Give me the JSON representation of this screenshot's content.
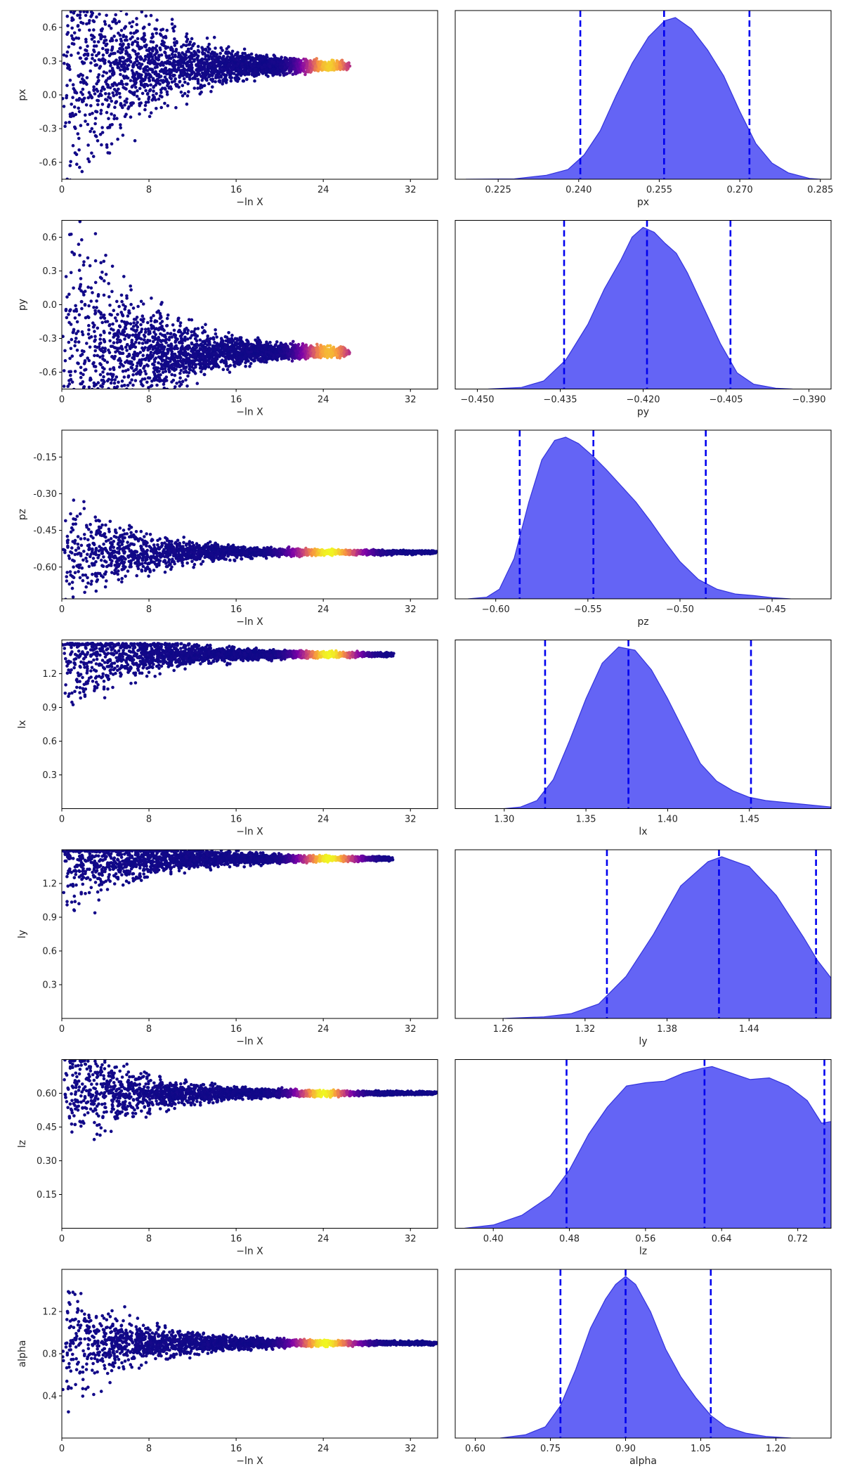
{
  "colors": {
    "scatter_low": "#0d0887",
    "scatter_mid1": "#7e03a8",
    "scatter_mid2": "#cc4778",
    "scatter_mid3": "#f89540",
    "scatter_high": "#f0f921",
    "density_fill": "#6464f5",
    "density_edge": "#3333dd",
    "quantile_line": "#0000ee",
    "axis": "#000000"
  },
  "chart_data": [
    {
      "param": "px",
      "type": "scatter",
      "xlabel": "−ln X",
      "ylabel": "px",
      "xlim": [
        0,
        34.5
      ],
      "xticks": [
        "0",
        "8",
        "16",
        "24",
        "32"
      ],
      "ylim": [
        -0.75,
        0.75
      ],
      "yticks": [
        "-0.6",
        "-0.3",
        "0.0",
        "0.3",
        "0.6"
      ],
      "converge_y": 0.26,
      "spread_start": 1.6,
      "converge_x": 26,
      "heat_center": 24.5,
      "heat_width": 2.2,
      "heat_strength": 0.9
    },
    {
      "param": "px",
      "type": "area",
      "xlabel": "px",
      "xlim": [
        0.217,
        0.287
      ],
      "xticks": [
        "0.225",
        "0.240",
        "0.255",
        "0.270",
        "0.285"
      ],
      "quantiles": [
        0.2403,
        0.2559,
        0.2718
      ],
      "density": [
        [
          0.219,
          0
        ],
        [
          0.228,
          0.002
        ],
        [
          0.234,
          0.025
        ],
        [
          0.238,
          0.06
        ],
        [
          0.241,
          0.15
        ],
        [
          0.244,
          0.3
        ],
        [
          0.247,
          0.52
        ],
        [
          0.25,
          0.72
        ],
        [
          0.253,
          0.88
        ],
        [
          0.256,
          0.98
        ],
        [
          0.258,
          1.0
        ],
        [
          0.261,
          0.93
        ],
        [
          0.264,
          0.8
        ],
        [
          0.267,
          0.64
        ],
        [
          0.27,
          0.42
        ],
        [
          0.273,
          0.22
        ],
        [
          0.276,
          0.1
        ],
        [
          0.279,
          0.04
        ],
        [
          0.283,
          0.005
        ],
        [
          0.285,
          0
        ]
      ]
    },
    {
      "param": "py",
      "type": "scatter",
      "xlabel": "−ln X",
      "ylabel": "py",
      "xlim": [
        0,
        34.5
      ],
      "xticks": [
        "0",
        "8",
        "16",
        "24",
        "32"
      ],
      "ylim": [
        -0.75,
        0.75
      ],
      "yticks": [
        "-0.6",
        "-0.3",
        "0.0",
        "0.3",
        "0.6"
      ],
      "converge_y": -0.42,
      "spread_start": 1.6,
      "converge_x": 26,
      "heat_center": 24.5,
      "heat_width": 2.2,
      "heat_strength": 0.85
    },
    {
      "param": "py",
      "type": "area",
      "xlabel": "py",
      "xlim": [
        -0.454,
        -0.386
      ],
      "xticks": [
        "−0.450",
        "−0.435",
        "−0.420",
        "−0.405",
        "−0.390"
      ],
      "quantiles": [
        -0.4343,
        -0.4193,
        -0.4042
      ],
      "density": [
        [
          -0.448,
          0
        ],
        [
          -0.442,
          0.01
        ],
        [
          -0.438,
          0.05
        ],
        [
          -0.434,
          0.18
        ],
        [
          -0.43,
          0.4
        ],
        [
          -0.427,
          0.62
        ],
        [
          -0.424,
          0.8
        ],
        [
          -0.422,
          0.94
        ],
        [
          -0.42,
          1.0
        ],
        [
          -0.418,
          0.97
        ],
        [
          -0.416,
          0.9
        ],
        [
          -0.414,
          0.84
        ],
        [
          -0.412,
          0.72
        ],
        [
          -0.409,
          0.5
        ],
        [
          -0.406,
          0.28
        ],
        [
          -0.403,
          0.1
        ],
        [
          -0.4,
          0.03
        ],
        [
          -0.396,
          0.005
        ],
        [
          -0.393,
          0
        ]
      ]
    },
    {
      "param": "pz",
      "type": "scatter",
      "xlabel": "−ln X",
      "ylabel": "pz",
      "xlim": [
        0,
        34.5
      ],
      "xticks": [
        "0",
        "8",
        "16",
        "24",
        "32"
      ],
      "ylim": [
        -0.73,
        -0.04
      ],
      "yticks": [
        "-0.15",
        "-0.30",
        "-0.45",
        "-0.60"
      ],
      "converge_y": -0.54,
      "spread_start": 0.6,
      "converge_x": 34,
      "heat_center": 24.5,
      "heat_width": 2.8,
      "heat_strength": 1.0
    },
    {
      "param": "pz",
      "type": "area",
      "xlabel": "pz",
      "xlim": [
        -0.622,
        -0.418
      ],
      "xticks": [
        "−0.60",
        "−0.55",
        "−0.50",
        "−0.45"
      ],
      "quantiles": [
        -0.587,
        -0.547,
        -0.486
      ],
      "density": [
        [
          -0.615,
          0
        ],
        [
          -0.605,
          0.01
        ],
        [
          -0.598,
          0.06
        ],
        [
          -0.59,
          0.25
        ],
        [
          -0.582,
          0.6
        ],
        [
          -0.575,
          0.86
        ],
        [
          -0.568,
          0.98
        ],
        [
          -0.562,
          1.0
        ],
        [
          -0.555,
          0.96
        ],
        [
          -0.547,
          0.88
        ],
        [
          -0.54,
          0.8
        ],
        [
          -0.532,
          0.7
        ],
        [
          -0.524,
          0.6
        ],
        [
          -0.516,
          0.48
        ],
        [
          -0.508,
          0.35
        ],
        [
          -0.5,
          0.23
        ],
        [
          -0.49,
          0.12
        ],
        [
          -0.48,
          0.06
        ],
        [
          -0.47,
          0.03
        ],
        [
          -0.46,
          0.02
        ],
        [
          -0.45,
          0.007
        ],
        [
          -0.44,
          0
        ]
      ]
    },
    {
      "param": "lx",
      "type": "scatter",
      "xlabel": "−ln X",
      "ylabel": "lx",
      "xlim": [
        0,
        34.5
      ],
      "xticks": [
        "0",
        "8",
        "16",
        "24",
        "32"
      ],
      "ylim": [
        0,
        1.5
      ],
      "yticks": [
        "0.3",
        "0.6",
        "0.9",
        "1.2"
      ],
      "converge_y": 1.37,
      "spread_start": 0.6,
      "converge_x": 30,
      "heat_center": 24.5,
      "heat_width": 2.4,
      "heat_strength": 1.0,
      "upper_edge": 1.47
    },
    {
      "param": "lx",
      "type": "area",
      "xlabel": "lx",
      "xlim": [
        1.27,
        1.5
      ],
      "xticks": [
        "1.30",
        "1.35",
        "1.40",
        "1.45"
      ],
      "quantiles": [
        1.325,
        1.376,
        1.451
      ],
      "density": [
        [
          1.3,
          0
        ],
        [
          1.31,
          0.01
        ],
        [
          1.32,
          0.05
        ],
        [
          1.33,
          0.18
        ],
        [
          1.34,
          0.42
        ],
        [
          1.35,
          0.68
        ],
        [
          1.36,
          0.9
        ],
        [
          1.37,
          1.0
        ],
        [
          1.38,
          0.98
        ],
        [
          1.39,
          0.86
        ],
        [
          1.4,
          0.68
        ],
        [
          1.41,
          0.48
        ],
        [
          1.42,
          0.28
        ],
        [
          1.43,
          0.17
        ],
        [
          1.44,
          0.11
        ],
        [
          1.45,
          0.07
        ],
        [
          1.46,
          0.05
        ],
        [
          1.48,
          0.03
        ],
        [
          1.5,
          0.01
        ]
      ]
    },
    {
      "param": "ly",
      "type": "scatter",
      "xlabel": "−ln X",
      "ylabel": "ly",
      "xlim": [
        0,
        34.5
      ],
      "xticks": [
        "0",
        "8",
        "16",
        "24",
        "32"
      ],
      "ylim": [
        0,
        1.5
      ],
      "yticks": [
        "0.3",
        "0.6",
        "0.9",
        "1.2"
      ],
      "converge_y": 1.42,
      "spread_start": 0.6,
      "converge_x": 30,
      "heat_center": 24.5,
      "heat_width": 2.4,
      "heat_strength": 1.0,
      "upper_edge": 1.5
    },
    {
      "param": "ly",
      "type": "area",
      "xlabel": "ly",
      "xlim": [
        1.225,
        1.5
      ],
      "xticks": [
        "1.26",
        "1.32",
        "1.38",
        "1.44"
      ],
      "quantiles": [
        1.336,
        1.418,
        1.489
      ],
      "density": [
        [
          1.26,
          0
        ],
        [
          1.29,
          0.01
        ],
        [
          1.31,
          0.03
        ],
        [
          1.33,
          0.09
        ],
        [
          1.35,
          0.26
        ],
        [
          1.37,
          0.52
        ],
        [
          1.39,
          0.82
        ],
        [
          1.41,
          0.97
        ],
        [
          1.42,
          1.0
        ],
        [
          1.43,
          0.97
        ],
        [
          1.44,
          0.94
        ],
        [
          1.46,
          0.76
        ],
        [
          1.48,
          0.5
        ],
        [
          1.49,
          0.36
        ],
        [
          1.5,
          0.25
        ]
      ]
    },
    {
      "param": "lz",
      "type": "scatter",
      "xlabel": "−ln X",
      "ylabel": "lz",
      "xlim": [
        0,
        34.5
      ],
      "xticks": [
        "0",
        "8",
        "16",
        "24",
        "32"
      ],
      "ylim": [
        0,
        0.75
      ],
      "yticks": [
        "0.15",
        "0.30",
        "0.45",
        "0.60"
      ],
      "converge_y": 0.6,
      "spread_start": 0.6,
      "converge_x": 34,
      "heat_center": 24.0,
      "heat_width": 2.2,
      "heat_strength": 1.0,
      "upper_edge": 0.75
    },
    {
      "param": "lz",
      "type": "area",
      "xlabel": "lz",
      "xlim": [
        0.36,
        0.755
      ],
      "xticks": [
        "0.40",
        "0.48",
        "0.56",
        "0.64",
        "0.72"
      ],
      "quantiles": [
        0.477,
        0.622,
        0.748
      ],
      "density": [
        [
          0.37,
          0
        ],
        [
          0.4,
          0.02
        ],
        [
          0.43,
          0.08
        ],
        [
          0.46,
          0.2
        ],
        [
          0.48,
          0.36
        ],
        [
          0.5,
          0.58
        ],
        [
          0.52,
          0.75
        ],
        [
          0.54,
          0.88
        ],
        [
          0.56,
          0.9
        ],
        [
          0.58,
          0.91
        ],
        [
          0.6,
          0.96
        ],
        [
          0.62,
          0.99
        ],
        [
          0.63,
          1.0
        ],
        [
          0.65,
          0.96
        ],
        [
          0.67,
          0.92
        ],
        [
          0.69,
          0.93
        ],
        [
          0.71,
          0.88
        ],
        [
          0.73,
          0.79
        ],
        [
          0.745,
          0.65
        ],
        [
          0.755,
          0.66
        ]
      ]
    },
    {
      "param": "alpha",
      "type": "scatter",
      "xlabel": "−ln X",
      "ylabel": "alpha",
      "xlim": [
        0,
        34.5
      ],
      "xticks": [
        "0",
        "8",
        "16",
        "24",
        "32"
      ],
      "ylim": [
        0,
        1.6
      ],
      "yticks": [
        "0.4",
        "0.8",
        "1.2"
      ],
      "converge_y": 0.9,
      "spread_start": 0.6,
      "converge_x": 34,
      "heat_center": 24.2,
      "heat_width": 2.6,
      "heat_strength": 1.0
    },
    {
      "param": "alpha",
      "type": "area",
      "xlabel": "alpha",
      "xlim": [
        0.56,
        1.31
      ],
      "xticks": [
        "0.60",
        "0.75",
        "0.90",
        "1.05",
        "1.20"
      ],
      "quantiles": [
        0.77,
        0.9,
        1.07
      ],
      "density": [
        [
          0.65,
          0
        ],
        [
          0.7,
          0.02
        ],
        [
          0.74,
          0.07
        ],
        [
          0.77,
          0.2
        ],
        [
          0.8,
          0.42
        ],
        [
          0.83,
          0.68
        ],
        [
          0.86,
          0.86
        ],
        [
          0.88,
          0.95
        ],
        [
          0.9,
          1.0
        ],
        [
          0.92,
          0.95
        ],
        [
          0.95,
          0.78
        ],
        [
          0.98,
          0.55
        ],
        [
          1.01,
          0.38
        ],
        [
          1.04,
          0.25
        ],
        [
          1.07,
          0.14
        ],
        [
          1.1,
          0.07
        ],
        [
          1.14,
          0.03
        ],
        [
          1.18,
          0.01
        ],
        [
          1.23,
          0
        ]
      ]
    }
  ]
}
